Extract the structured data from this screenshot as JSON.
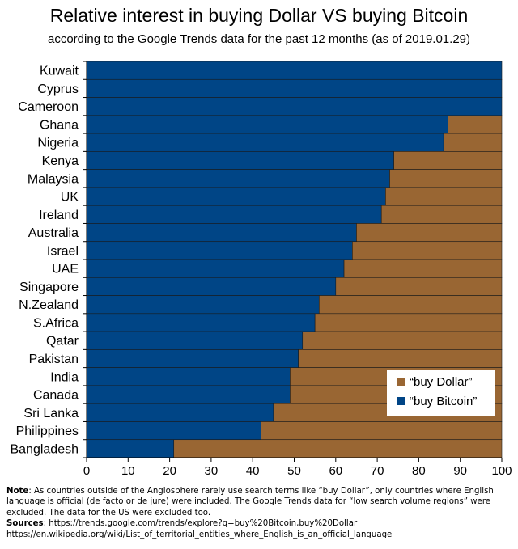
{
  "title": "Relative interest in buying Dollar VS buying Bitcoin",
  "subtitle": "according to the Google Trends data for the past 12 months (as of 2019.01.29)",
  "notes": {
    "note_label": "Note",
    "note_text": ": As countries outside of the Anglosphere rarely use search terms like “buy Dollar”, only countries where English language is official (de facto or de jure) were included. The Google Trends data for “low search volume regions” were excluded. The data for the US were excluded too.",
    "sources_label": "Sources",
    "sources_text": ": https://trends.google.com/trends/explore?q=buy%20Bitcoin,buy%20Dollar",
    "sources_text2": "https://en.wikipedia.org/wiki/List_of_territorial_entities_where_English_is_an_official_language"
  },
  "chart_data": {
    "type": "bar",
    "orientation": "horizontal",
    "stacked": true,
    "title": "Relative interest in buying Dollar VS buying Bitcoin",
    "subtitle": "according to the Google Trends data for the past 12 months (as of 2019.01.29)",
    "categories": [
      "Kuwait",
      "Cyprus",
      "Cameroon",
      "Ghana",
      "Nigeria",
      "Kenya",
      "Malaysia",
      "UK",
      "Ireland",
      "Australia",
      "Israel",
      "UAE",
      "Singapore",
      "N.Zealand",
      "S.Africa",
      "Qatar",
      "Pakistan",
      "India",
      "Canada",
      "Sri Lanka",
      "Philippines",
      "Bangladesh"
    ],
    "series": [
      {
        "name": "“buy Bitcoin”",
        "color": "#004586",
        "values": [
          100,
          100,
          100,
          87,
          86,
          74,
          73,
          72,
          71,
          65,
          64,
          62,
          60,
          56,
          55,
          52,
          51,
          49,
          49,
          45,
          42,
          21
        ]
      },
      {
        "name": "“buy Dollar”",
        "color": "#996633",
        "values": [
          0,
          0,
          0,
          13,
          14,
          26,
          27,
          28,
          29,
          35,
          36,
          38,
          40,
          44,
          45,
          48,
          49,
          51,
          51,
          55,
          58,
          79
        ]
      }
    ],
    "xlim": [
      0,
      100
    ],
    "xticks": [
      0,
      10,
      20,
      30,
      40,
      50,
      60,
      70,
      80,
      90,
      100
    ],
    "legend_order": [
      "“buy Dollar”",
      "“buy Bitcoin”"
    ],
    "legend_position": "bottom-right",
    "grid": false
  }
}
